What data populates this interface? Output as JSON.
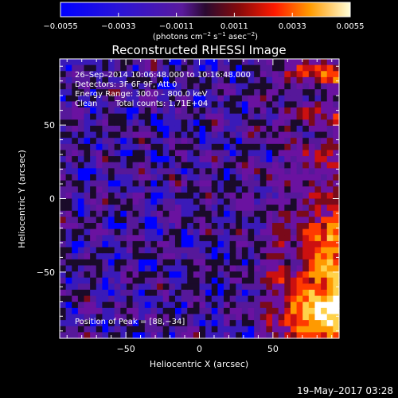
{
  "chart_data": {
    "type": "heatmap",
    "title": "Reconstructed RHESSI Image",
    "xlabel": "Heliocentric X (arcsec)",
    "ylabel": "Heliocentric Y (arcsec)",
    "xlim": [
      -95,
      95
    ],
    "ylim": [
      -95,
      95
    ],
    "xticks": [
      -50,
      0,
      50
    ],
    "yticks": [
      -50,
      0,
      50
    ],
    "colorbar": {
      "min": -0.0055,
      "max": 0.0055,
      "ticks": [
        "−0.0055",
        "−0.0033",
        "−0.0011",
        "0.0011",
        "0.0033",
        "0.0055"
      ],
      "unit_label_parts": [
        "(photons cm",
        "−2",
        " s",
        "−1",
        " asec",
        "−2",
        ")"
      ]
    },
    "annotations": [
      "26–Sep–2014 10:06:48.000 to 10:16:48.000",
      "Detectors: 3F 6F 9F, Att 0",
      "Energy Range: 300.0 – 800.0 keV",
      "Clean",
      "Total counts: 1.71E+04"
    ],
    "peak_label": "Position of Peak = [88,−34]",
    "peak_position": [
      88,
      -34
    ],
    "footer": "19–May–2017 03:28",
    "colors": {
      "negative_low": "#0000ff",
      "zero": "#1a0b2a",
      "neutral": "#56189a",
      "positive_mid": "#cc1010",
      "positive_high": "#ff9a00",
      "max": "#ffffff"
    }
  }
}
